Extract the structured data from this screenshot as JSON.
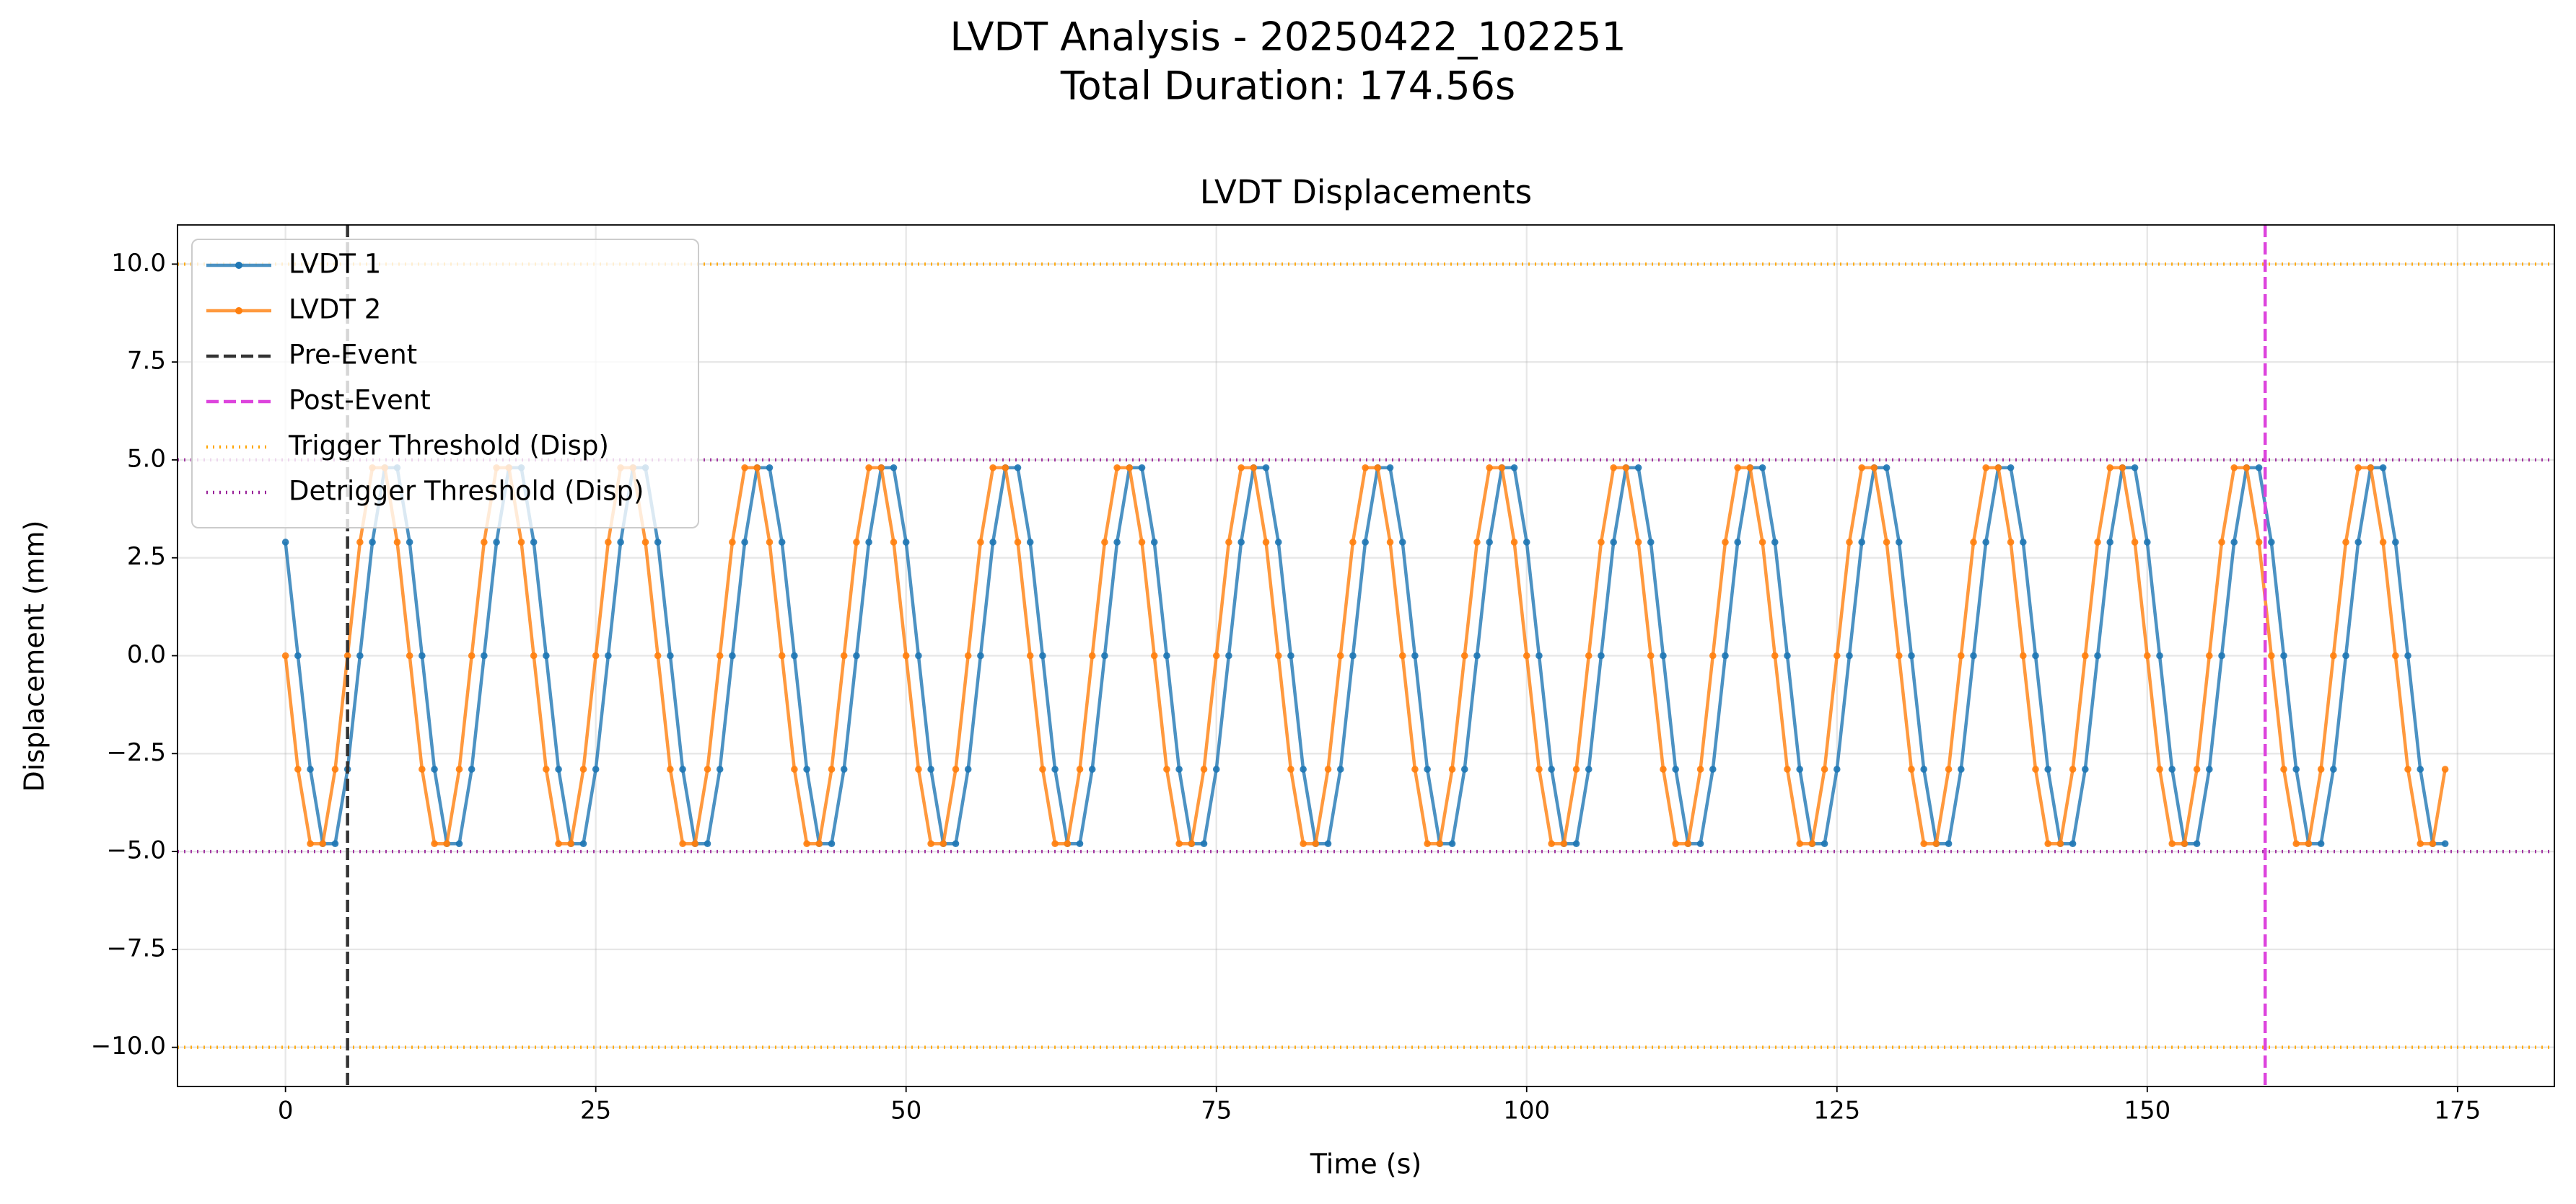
{
  "chart_data": {
    "type": "line",
    "suptitle": "LVDT Analysis - 20250422_102251",
    "subtitle": "Total Duration: 174.56s",
    "title": "LVDT Displacements",
    "xlabel": "Time (s)",
    "ylabel": "Displacement (mm)",
    "xlim": [
      -8.7,
      182.8
    ],
    "ylim": [
      -11,
      11
    ],
    "xticks": [
      0,
      25,
      50,
      75,
      100,
      125,
      150,
      175
    ],
    "yticks": [
      {
        "value": -10,
        "label": "−10.0"
      },
      {
        "value": -7.5,
        "label": "−7.5"
      },
      {
        "value": -5,
        "label": "−5.0"
      },
      {
        "value": -2.5,
        "label": "−2.5"
      },
      {
        "value": 0,
        "label": "0.0"
      },
      {
        "value": 2.5,
        "label": "2.5"
      },
      {
        "value": 5,
        "label": "5.0"
      },
      {
        "value": 7.5,
        "label": "7.5"
      },
      {
        "value": 10,
        "label": "10.0"
      }
    ],
    "grid": true,
    "legend": "upper left",
    "x": [
      0,
      1,
      2,
      3,
      4,
      5,
      6,
      7,
      8,
      9,
      10,
      11,
      12,
      13,
      14,
      15,
      16,
      17,
      18,
      19,
      20,
      21,
      22,
      23,
      24,
      25,
      26,
      27,
      28,
      29,
      30,
      31,
      32,
      33,
      34,
      35,
      36,
      37,
      38,
      39,
      40,
      41,
      42,
      43,
      44,
      45,
      46,
      47,
      48,
      49,
      50,
      51,
      52,
      53,
      54,
      55,
      56,
      57,
      58,
      59,
      60,
      61,
      62,
      63,
      64,
      65,
      66,
      67,
      68,
      69,
      70,
      71,
      72,
      73,
      74,
      75,
      76,
      77,
      78,
      79,
      80,
      81,
      82,
      83,
      84,
      85,
      86,
      87,
      88,
      89,
      90,
      91,
      92,
      93,
      94,
      95,
      96,
      97,
      98,
      99,
      100,
      101,
      102,
      103,
      104,
      105,
      106,
      107,
      108,
      109,
      110,
      111,
      112,
      113,
      114,
      115,
      116,
      117,
      118,
      119,
      120,
      121,
      122,
      123,
      124,
      125,
      126,
      127,
      128,
      129,
      130,
      131,
      132,
      133,
      134,
      135,
      136,
      137,
      138,
      139,
      140,
      141,
      142,
      143,
      144,
      145,
      146,
      147,
      148,
      149,
      150,
      151,
      152,
      153,
      154,
      155,
      156,
      157,
      158,
      159,
      160,
      161,
      162,
      163,
      164,
      165,
      166,
      167,
      168,
      169,
      170,
      171,
      172,
      173,
      174
    ],
    "series": [
      {
        "name": "LVDT 1",
        "color": "#1f77b4",
        "values": [
          2.9,
          0,
          -2.9,
          -4.8,
          -4.8,
          -2.9,
          0,
          2.9,
          4.8,
          4.8,
          2.9,
          0,
          -2.9,
          -4.8,
          -4.8,
          -2.9,
          0,
          2.9,
          4.8,
          4.8,
          2.9,
          0,
          -2.9,
          -4.8,
          -4.8,
          -2.9,
          0,
          2.9,
          4.8,
          4.8,
          2.9,
          0,
          -2.9,
          -4.8,
          -4.8,
          -2.9,
          0,
          2.9,
          4.8,
          4.8,
          2.9,
          0,
          -2.9,
          -4.8,
          -4.8,
          -2.9,
          0,
          2.9,
          4.8,
          4.8,
          2.9,
          0,
          -2.9,
          -4.8,
          -4.8,
          -2.9,
          0,
          2.9,
          4.8,
          4.8,
          2.9,
          0,
          -2.9,
          -4.8,
          -4.8,
          -2.9,
          0,
          2.9,
          4.8,
          4.8,
          2.9,
          0,
          -2.9,
          -4.8,
          -4.8,
          -2.9,
          0,
          2.9,
          4.8,
          4.8,
          2.9,
          0,
          -2.9,
          -4.8,
          -4.8,
          -2.9,
          0,
          2.9,
          4.8,
          4.8,
          2.9,
          0,
          -2.9,
          -4.8,
          -4.8,
          -2.9,
          0,
          2.9,
          4.8,
          4.8,
          2.9,
          0,
          -2.9,
          -4.8,
          -4.8,
          -2.9,
          0,
          2.9,
          4.8,
          4.8,
          2.9,
          0,
          -2.9,
          -4.8,
          -4.8,
          -2.9,
          0,
          2.9,
          4.8,
          4.8,
          2.9,
          0,
          -2.9,
          -4.8,
          -4.8,
          -2.9,
          0,
          2.9,
          4.8,
          4.8,
          2.9,
          0,
          -2.9,
          -4.8,
          -4.8,
          -2.9,
          0,
          2.9,
          4.8,
          4.8,
          2.9,
          0,
          -2.9,
          -4.8,
          -4.8,
          -2.9,
          0,
          2.9,
          4.8,
          4.8,
          2.9,
          0,
          -2.9,
          -4.8,
          -4.8,
          -2.9,
          0,
          2.9,
          4.8,
          4.8,
          2.9,
          0,
          -2.9,
          -4.8,
          -4.8,
          -2.9,
          0,
          2.9,
          4.8,
          4.8,
          2.9,
          0,
          -2.9,
          -4.8,
          -4.8
        ]
      },
      {
        "name": "LVDT 2",
        "color": "#ff7f0e",
        "values": [
          0,
          -2.9,
          -4.8,
          -4.8,
          -2.9,
          0,
          2.9,
          4.8,
          4.8,
          2.9,
          0,
          -2.9,
          -4.8,
          -4.8,
          -2.9,
          0,
          2.9,
          4.8,
          4.8,
          2.9,
          0,
          -2.9,
          -4.8,
          -4.8,
          -2.9,
          0,
          2.9,
          4.8,
          4.8,
          2.9,
          0,
          -2.9,
          -4.8,
          -4.8,
          -2.9,
          0,
          2.9,
          4.8,
          4.8,
          2.9,
          0,
          -2.9,
          -4.8,
          -4.8,
          -2.9,
          0,
          2.9,
          4.8,
          4.8,
          2.9,
          0,
          -2.9,
          -4.8,
          -4.8,
          -2.9,
          0,
          2.9,
          4.8,
          4.8,
          2.9,
          0,
          -2.9,
          -4.8,
          -4.8,
          -2.9,
          0,
          2.9,
          4.8,
          4.8,
          2.9,
          0,
          -2.9,
          -4.8,
          -4.8,
          -2.9,
          0,
          2.9,
          4.8,
          4.8,
          2.9,
          0,
          -2.9,
          -4.8,
          -4.8,
          -2.9,
          0,
          2.9,
          4.8,
          4.8,
          2.9,
          0,
          -2.9,
          -4.8,
          -4.8,
          -2.9,
          0,
          2.9,
          4.8,
          4.8,
          2.9,
          0,
          -2.9,
          -4.8,
          -4.8,
          -2.9,
          0,
          2.9,
          4.8,
          4.8,
          2.9,
          0,
          -2.9,
          -4.8,
          -4.8,
          -2.9,
          0,
          2.9,
          4.8,
          4.8,
          2.9,
          0,
          -2.9,
          -4.8,
          -4.8,
          -2.9,
          0,
          2.9,
          4.8,
          4.8,
          2.9,
          0,
          -2.9,
          -4.8,
          -4.8,
          -2.9,
          0,
          2.9,
          4.8,
          4.8,
          2.9,
          0,
          -2.9,
          -4.8,
          -4.8,
          -2.9,
          0,
          2.9,
          4.8,
          4.8,
          2.9,
          0,
          -2.9,
          -4.8,
          -4.8,
          -2.9,
          0,
          2.9,
          4.8,
          4.8,
          2.9,
          0,
          -2.9,
          -4.8,
          -4.8,
          -2.9,
          0,
          2.9,
          4.8,
          4.8,
          2.9,
          0,
          -2.9,
          -4.8,
          -4.8,
          -2.9
        ]
      }
    ],
    "vlines": [
      {
        "name": "Pre-Event",
        "color": "#333333",
        "x": 5
      },
      {
        "name": "Post-Event",
        "color": "#dd44dd",
        "x": 159.5
      }
    ],
    "hlines": [
      {
        "name": "Trigger Threshold (Disp)",
        "color": "#ffa500",
        "values": [
          10,
          -10
        ]
      },
      {
        "name": "Detrigger Threshold (Disp)",
        "color": "#992299",
        "values": [
          5,
          -5
        ]
      }
    ]
  }
}
